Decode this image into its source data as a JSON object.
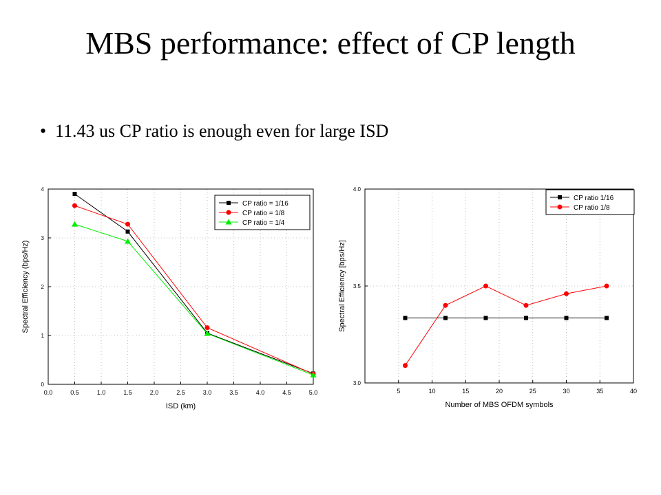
{
  "slide": {
    "title": "MBS performance: effect of CP length",
    "bullet": "11.43 us CP ratio is enough even for large ISD",
    "bullet_marker": "•"
  },
  "chart_data": [
    {
      "type": "line",
      "xlabel": "ISD (km)",
      "ylabel": "Spectral Efficiency (bps/Hz)",
      "xlim": [
        0,
        5
      ],
      "ylim": [
        0,
        4
      ],
      "x_ticks": [
        "0.0",
        "0.5",
        "1.0",
        "1.5",
        "2.0",
        "2.5",
        "3.0",
        "3.5",
        "4.0",
        "4.5",
        "5.0"
      ],
      "y_ticks": [
        "0",
        "1",
        "2",
        "3",
        "4"
      ],
      "grid": true,
      "legend_position": "top-right",
      "x": [
        0.5,
        1.5,
        3.0,
        5.0
      ],
      "series": [
        {
          "name": "CP ratio = 1/16",
          "color": "#000000",
          "marker": "square",
          "values": [
            3.9,
            3.13,
            1.05,
            0.22
          ]
        },
        {
          "name": "CP ratio = 1/8",
          "color": "#ff0000",
          "marker": "circle",
          "values": [
            3.66,
            3.28,
            1.16,
            0.21
          ]
        },
        {
          "name": "CP ratio = 1/4",
          "color": "#00ee00",
          "marker": "triangle",
          "values": [
            3.28,
            2.93,
            1.04,
            0.19
          ]
        }
      ]
    },
    {
      "type": "line",
      "xlabel": "Number of MBS OFDM symbols",
      "ylabel": "Spectral Efficiency [bps/Hz]",
      "xlim": [
        0,
        40
      ],
      "ylim": [
        3.0,
        4.0
      ],
      "x_ticks": [
        "5",
        "10",
        "15",
        "20",
        "25",
        "30",
        "35",
        "40"
      ],
      "y_ticks": [
        "3.0",
        "3.5",
        "4.0"
      ],
      "grid": true,
      "legend_position": "top-right",
      "x": [
        6,
        12,
        18,
        24,
        30,
        36
      ],
      "series": [
        {
          "name": "CP ratio 1/16",
          "color": "#000000",
          "marker": "square",
          "values": [
            3.335,
            3.335,
            3.335,
            3.335,
            3.335,
            3.335
          ]
        },
        {
          "name": "CP ratio 1/8",
          "color": "#ff0000",
          "marker": "circle",
          "values": [
            3.09,
            3.4,
            3.5,
            3.4,
            3.46,
            3.5
          ]
        }
      ]
    }
  ]
}
